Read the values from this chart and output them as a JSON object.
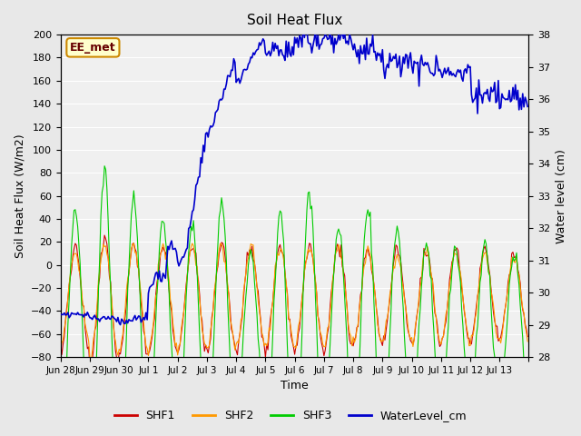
{
  "title": "Soil Heat Flux",
  "xlabel": "Time",
  "ylabel_left": "Soil Heat Flux (W/m2)",
  "ylabel_right": "Water level (cm)",
  "ylim_left": [
    -80,
    200
  ],
  "ylim_right": [
    28.0,
    38.0
  ],
  "yticks_left": [
    -80,
    -60,
    -40,
    -20,
    0,
    20,
    40,
    60,
    80,
    100,
    120,
    140,
    160,
    180,
    200
  ],
  "yticks_right": [
    28.0,
    29.0,
    30.0,
    31.0,
    32.0,
    33.0,
    34.0,
    35.0,
    36.0,
    37.0,
    38.0
  ],
  "xtick_positions": [
    0,
    1,
    2,
    3,
    4,
    5,
    6,
    7,
    8,
    9,
    10,
    11,
    12,
    13,
    14,
    15,
    16
  ],
  "xtick_labels": [
    "Jun 28",
    "Jun 29",
    "Jun 30",
    "Jul 1",
    "Jul 2",
    "Jul 3",
    "Jul 4",
    "Jul 5",
    "Jul 6",
    "Jul 7",
    "Jul 8",
    "Jul 9",
    "Jul 10",
    "Jul 11",
    "Jul 12",
    "Jul 13",
    ""
  ],
  "colors": {
    "SHF1": "#cc0000",
    "SHF2": "#ff9900",
    "SHF3": "#00cc00",
    "WaterLevel": "#0000cc"
  },
  "bg_color": "#e8e8e8",
  "plot_bg": "#f0f0f0",
  "annotation_text": "EE_met",
  "annotation_bg": "#ffffcc",
  "annotation_border": "#cc8800",
  "n_days": 16,
  "shf3_amplitudes": [
    100,
    140,
    120,
    90,
    90,
    110,
    70,
    110,
    120,
    85,
    105,
    90,
    75,
    68,
    68,
    60
  ],
  "shf3_bases": [
    -55,
    -60,
    -60,
    -50,
    -55,
    -55,
    -60,
    -65,
    -55,
    -50,
    -55,
    -60,
    -55,
    -55,
    -50,
    -50
  ],
  "shf1_amplitudes": [
    45,
    55,
    50,
    45,
    45,
    45,
    45,
    45,
    45,
    45,
    40,
    40,
    40,
    40,
    40,
    35
  ],
  "shf1_bases": [
    -30,
    -35,
    -30,
    -30,
    -28,
    -28,
    -28,
    -28,
    -28,
    -28,
    -28,
    -28,
    -28,
    -28,
    -28,
    -28
  ],
  "shf2_amplitudes": [
    40,
    50,
    45,
    45,
    45,
    43,
    43,
    43,
    42,
    42,
    40,
    38,
    38,
    38,
    38,
    35
  ],
  "shf2_bases": [
    -28,
    -32,
    -28,
    -28,
    -28,
    -28,
    -28,
    -28,
    -28,
    -28,
    -28,
    -28,
    -28,
    -28,
    -28,
    -28
  ]
}
